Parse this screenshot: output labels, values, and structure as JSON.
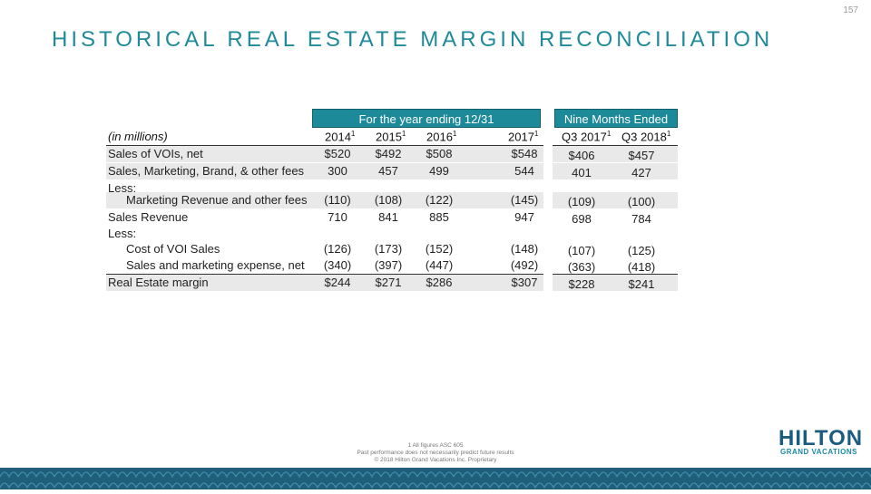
{
  "page_number": "157",
  "title": "HISTORICAL REAL ESTATE MARGIN RECONCILIATION",
  "group_headers": {
    "year": "For the year ending 12/31",
    "nine_months": "Nine Months Ended"
  },
  "columns": {
    "label": "(in millions)",
    "c0": "2014",
    "c1": "2015",
    "c2": "2016",
    "c3": "2017",
    "c4": "Q3 2017",
    "c5": "Q3 2018",
    "sup": "1"
  },
  "rows": [
    {
      "label": "Sales of VOIs, net",
      "values": [
        "$520",
        "$492",
        "$508",
        "$548",
        "$406",
        "$457"
      ]
    },
    {
      "label": "Sales, Marketing, Brand, & other fees",
      "values": [
        "300",
        "457",
        "499",
        "544",
        "401",
        "427"
      ]
    },
    {
      "label": "Less:",
      "values": [
        "",
        "",
        "",
        "",
        "",
        ""
      ]
    },
    {
      "label": "Marketing Revenue and other fees",
      "values": [
        "(110)",
        "(108)",
        "(122)",
        "(145)",
        "(109)",
        "(100)"
      ]
    },
    {
      "label": "Sales Revenue",
      "values": [
        "710",
        "841",
        "885",
        "947",
        "698",
        "784"
      ]
    },
    {
      "label": "Less:",
      "values": [
        "",
        "",
        "",
        "",
        "",
        ""
      ]
    },
    {
      "label": "Cost of VOI Sales",
      "values": [
        "(126)",
        "(173)",
        "(152)",
        "(148)",
        "(107)",
        "(125)"
      ]
    },
    {
      "label": "Sales and marketing expense, net",
      "values": [
        "(340)",
        "(397)",
        "(447)",
        "(492)",
        "(363)",
        "(418)"
      ]
    },
    {
      "label": "Real Estate margin",
      "values": [
        "$244",
        "$271",
        "$286",
        "$307",
        "$228",
        "$241"
      ]
    }
  ],
  "footnotes": {
    "line1": "1        All figures ASC 605",
    "line2": "Past performance does not necessarily predict future results",
    "line3": "© 2018 Hilton Grand Vacations Inc. Proprietary"
  },
  "logo": {
    "main": "HILTON",
    "sub": "GRAND VACATIONS"
  }
}
